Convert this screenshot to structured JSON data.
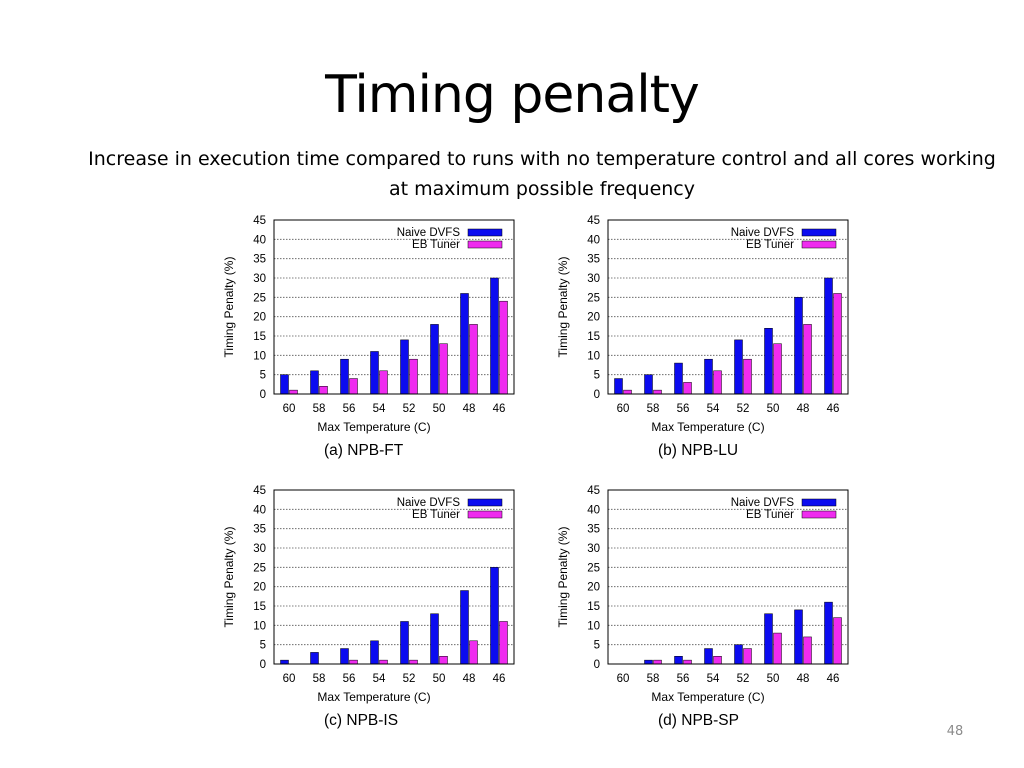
{
  "slide": {
    "title": "Timing penalty",
    "subtitle": "Increase in execution time compared to runs with no temperature control and all cores working at maximum possible frequency",
    "page_number": "48"
  },
  "colors": {
    "naive": "#0b0bf0",
    "eb": "#ef2bef",
    "grid": "#555555"
  },
  "chart_data": [
    {
      "type": "bar",
      "caption": "(a) NPB-FT",
      "xlabel": "Max Temperature (C)",
      "ylabel": "Timing Penalty (%)",
      "ylim": [
        0,
        45
      ],
      "yticks": [
        0,
        5,
        10,
        15,
        20,
        25,
        30,
        35,
        40,
        45
      ],
      "categories": [
        "60",
        "58",
        "56",
        "54",
        "52",
        "50",
        "48",
        "46"
      ],
      "series": [
        {
          "name": "Naive DVFS",
          "values": [
            5,
            6,
            9,
            11,
            14,
            18,
            26,
            30
          ]
        },
        {
          "name": "EB Tuner",
          "values": [
            1,
            2,
            4,
            6,
            9,
            13,
            18,
            24
          ]
        }
      ],
      "legend": "top-right",
      "grid": true
    },
    {
      "type": "bar",
      "caption": "(b) NPB-LU",
      "xlabel": "Max Temperature (C)",
      "ylabel": "Timing Penalty (%)",
      "ylim": [
        0,
        45
      ],
      "yticks": [
        0,
        5,
        10,
        15,
        20,
        25,
        30,
        35,
        40,
        45
      ],
      "categories": [
        "60",
        "58",
        "56",
        "54",
        "52",
        "50",
        "48",
        "46"
      ],
      "series": [
        {
          "name": "Naive DVFS",
          "values": [
            4,
            5,
            8,
            9,
            14,
            17,
            25,
            30
          ]
        },
        {
          "name": "EB Tuner",
          "values": [
            1,
            1,
            3,
            6,
            9,
            13,
            18,
            26
          ]
        }
      ],
      "legend": "top-right",
      "grid": true
    },
    {
      "type": "bar",
      "caption": "(c) NPB-IS",
      "xlabel": "Max Temperature (C)",
      "ylabel": "Timing Penalty (%)",
      "ylim": [
        0,
        45
      ],
      "yticks": [
        0,
        5,
        10,
        15,
        20,
        25,
        30,
        35,
        40,
        45
      ],
      "categories": [
        "60",
        "58",
        "56",
        "54",
        "52",
        "50",
        "48",
        "46"
      ],
      "series": [
        {
          "name": "Naive DVFS",
          "values": [
            1,
            3,
            4,
            6,
            11,
            13,
            19,
            25
          ]
        },
        {
          "name": "EB Tuner",
          "values": [
            0,
            0,
            1,
            1,
            1,
            2,
            6,
            11
          ]
        }
      ],
      "legend": "top-right",
      "grid": true
    },
    {
      "type": "bar",
      "caption": "(d) NPB-SP",
      "xlabel": "Max Temperature (C)",
      "ylabel": "Timing Penalty (%)",
      "ylim": [
        0,
        45
      ],
      "yticks": [
        0,
        5,
        10,
        15,
        20,
        25,
        30,
        35,
        40,
        45
      ],
      "categories": [
        "60",
        "58",
        "56",
        "54",
        "52",
        "50",
        "48",
        "46"
      ],
      "series": [
        {
          "name": "Naive DVFS",
          "values": [
            0,
            1,
            2,
            4,
            5,
            13,
            14,
            16
          ]
        },
        {
          "name": "EB Tuner",
          "values": [
            0,
            1,
            1,
            2,
            4,
            8,
            7,
            12
          ]
        }
      ],
      "legend": "top-right",
      "grid": true
    }
  ]
}
